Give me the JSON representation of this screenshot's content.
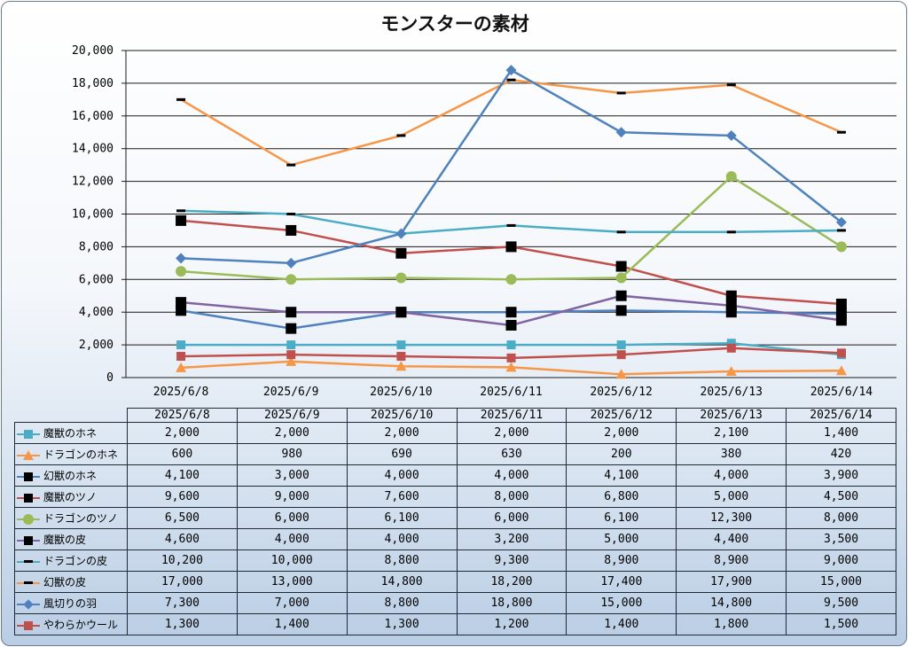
{
  "chart_data": {
    "type": "line",
    "title": "モンスターの素材",
    "categories": [
      "2025/6/8",
      "2025/6/9",
      "2025/6/10",
      "2025/6/11",
      "2025/6/12",
      "2025/6/13",
      "2025/6/14"
    ],
    "ylim": [
      0,
      20000
    ],
    "yticks": [
      "0",
      "2,000",
      "4,000",
      "6,000",
      "8,000",
      "10,000",
      "12,000",
      "14,000",
      "16,000",
      "18,000",
      "20,000"
    ],
    "grid": "horizontal",
    "legend": "data-table",
    "series": [
      {
        "name": "魔獣のホネ",
        "color": "#4bacc6",
        "marker": "square",
        "values": [
          2000,
          2000,
          2000,
          2000,
          2000,
          2100,
          1400
        ],
        "labels": [
          "2,000",
          "2,000",
          "2,000",
          "2,000",
          "2,000",
          "2,100",
          "1,400"
        ]
      },
      {
        "name": "ドラゴンのホネ",
        "color": "#f79646",
        "marker": "triangle",
        "values": [
          600,
          980,
          690,
          630,
          200,
          380,
          420
        ],
        "labels": [
          "600",
          "980",
          "690",
          "630",
          "200",
          "380",
          "420"
        ]
      },
      {
        "name": "幻獣のホネ",
        "color": "#4f81bd",
        "marker": "bigsquare",
        "values": [
          4100,
          3000,
          4000,
          4000,
          4100,
          4000,
          3900
        ],
        "labels": [
          "4,100",
          "3,000",
          "4,000",
          "4,000",
          "4,100",
          "4,000",
          "3,900"
        ]
      },
      {
        "name": "魔獣のツノ",
        "color": "#c0504d",
        "marker": "bigsquare",
        "values": [
          9600,
          9000,
          7600,
          8000,
          6800,
          5000,
          4500
        ],
        "labels": [
          "9,600",
          "9,000",
          "7,600",
          "8,000",
          "6,800",
          "5,000",
          "4,500"
        ]
      },
      {
        "name": "ドラゴンのツノ",
        "color": "#9bbb59",
        "marker": "circle",
        "values": [
          6500,
          6000,
          6100,
          6000,
          6100,
          12300,
          8000
        ],
        "labels": [
          "6,500",
          "6,000",
          "6,100",
          "6,000",
          "6,100",
          "12,300",
          "8,000"
        ]
      },
      {
        "name": "魔獣の皮",
        "color": "#8064a2",
        "marker": "bigsquare",
        "values": [
          4600,
          4000,
          4000,
          3200,
          5000,
          4400,
          3500
        ],
        "labels": [
          "4,600",
          "4,000",
          "4,000",
          "3,200",
          "5,000",
          "4,400",
          "3,500"
        ]
      },
      {
        "name": "ドラゴンの皮",
        "color": "#4bacc6",
        "marker": "dash",
        "values": [
          10200,
          10000,
          8800,
          9300,
          8900,
          8900,
          9000
        ],
        "labels": [
          "10,200",
          "10,000",
          "8,800",
          "9,300",
          "8,900",
          "8,900",
          "9,000"
        ]
      },
      {
        "name": "幻獣の皮",
        "color": "#f79646",
        "marker": "dash",
        "values": [
          17000,
          13000,
          14800,
          18200,
          17400,
          17900,
          15000
        ],
        "labels": [
          "17,000",
          "13,000",
          "14,800",
          "18,200",
          "17,400",
          "17,900",
          "15,000"
        ]
      },
      {
        "name": "風切りの羽",
        "color": "#4f81bd",
        "marker": "diamond",
        "values": [
          7300,
          7000,
          8800,
          18800,
          15000,
          14800,
          9500
        ],
        "labels": [
          "7,300",
          "7,000",
          "8,800",
          "18,800",
          "15,000",
          "14,800",
          "9,500"
        ]
      },
      {
        "name": "やわらかウール",
        "color": "#c0504d",
        "marker": "square",
        "values": [
          1300,
          1400,
          1300,
          1200,
          1400,
          1800,
          1500
        ],
        "labels": [
          "1,300",
          "1,400",
          "1,300",
          "1,200",
          "1,400",
          "1,800",
          "1,500"
        ]
      }
    ]
  }
}
